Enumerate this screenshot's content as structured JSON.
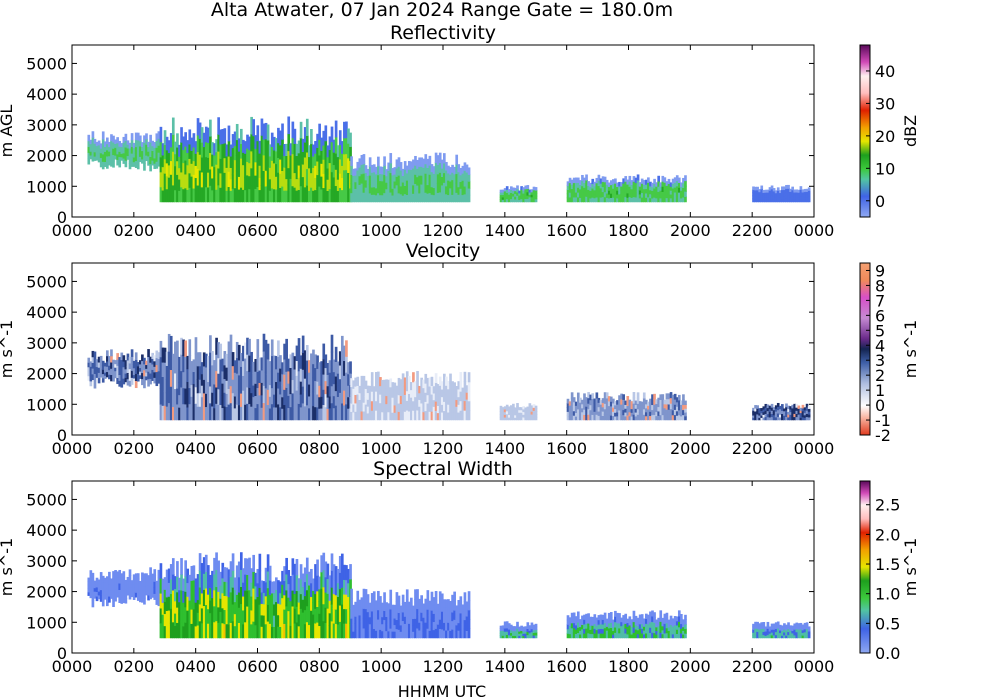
{
  "title": "Alta Atwater, 07 Jan 2024 Range Gate = 180.0m",
  "xaxis_label": "HHMM UTC",
  "chart_data": [
    {
      "type": "heatmap",
      "title": "Reflectivity",
      "ylabel": "m AGL",
      "ylim": [
        0,
        5600
      ],
      "yticks": [
        "0",
        "1000",
        "2000",
        "3000",
        "4000",
        "5000"
      ],
      "xticks": [
        "0000",
        "0200",
        "0400",
        "0600",
        "0800",
        "1000",
        "1200",
        "1400",
        "1600",
        "1800",
        "2000",
        "2200",
        "0000"
      ],
      "colorbar": {
        "label": "dBZ",
        "range": [
          -5,
          48
        ],
        "ticks": [
          "0",
          "10",
          "20",
          "30",
          "40"
        ]
      },
      "echo_segments": [
        {
          "start": "0030",
          "end": "0250",
          "base_m": 1500,
          "top_m": 2800,
          "peak_dbz": 8
        },
        {
          "start": "0250",
          "end": "0900",
          "base_m": 500,
          "top_m": 3300,
          "peak_dbz": 18
        },
        {
          "start": "0900",
          "end": "1250",
          "base_m": 500,
          "top_m": 2100,
          "peak_dbz": 8
        },
        {
          "start": "1350",
          "end": "1500",
          "base_m": 500,
          "top_m": 1050,
          "peak_dbz": 10
        },
        {
          "start": "1600",
          "end": "1950",
          "base_m": 500,
          "top_m": 1400,
          "peak_dbz": 10
        },
        {
          "start": "2200",
          "end": "2350",
          "base_m": 500,
          "top_m": 1050,
          "peak_dbz": 2
        }
      ]
    },
    {
      "type": "heatmap",
      "title": "Velocity",
      "ylabel": "m s^-1",
      "ylim": [
        0,
        5600
      ],
      "yticks": [
        "0",
        "1000",
        "2000",
        "3000",
        "4000",
        "5000"
      ],
      "xticks": [
        "0000",
        "0200",
        "0400",
        "0600",
        "0800",
        "1000",
        "1200",
        "1400",
        "1600",
        "1800",
        "2000",
        "2200",
        "0000"
      ],
      "colorbar": {
        "label": "m s^-1",
        "range": [
          -2,
          9.5
        ],
        "ticks": [
          "-2",
          "-1",
          "0",
          "1",
          "2",
          "3",
          "4",
          "5",
          "6",
          "7",
          "8",
          "9"
        ]
      },
      "echo_segments": [
        {
          "start": "0030",
          "end": "0250",
          "base_m": 1500,
          "top_m": 2800,
          "mean_vel": 2.5
        },
        {
          "start": "0250",
          "end": "0900",
          "base_m": 500,
          "top_m": 3300,
          "mean_vel": 2.5
        },
        {
          "start": "0900",
          "end": "1250",
          "base_m": 500,
          "top_m": 2100,
          "mean_vel": 0.7
        },
        {
          "start": "1350",
          "end": "1500",
          "base_m": 500,
          "top_m": 1050,
          "mean_vel": 0.8
        },
        {
          "start": "1600",
          "end": "1950",
          "base_m": 500,
          "top_m": 1400,
          "mean_vel": 2.0
        },
        {
          "start": "2200",
          "end": "2350",
          "base_m": 500,
          "top_m": 1050,
          "mean_vel": 3.0
        }
      ]
    },
    {
      "type": "heatmap",
      "title": "Spectral Width",
      "ylabel": "m s^-1",
      "ylim": [
        0,
        5600
      ],
      "yticks": [
        "0",
        "1000",
        "2000",
        "3000",
        "4000",
        "5000"
      ],
      "xticks": [
        "0000",
        "0200",
        "0400",
        "0600",
        "0800",
        "1000",
        "1200",
        "1400",
        "1600",
        "1800",
        "2000",
        "2200",
        "0000"
      ],
      "colorbar": {
        "label": "m s^-1",
        "range": [
          0,
          2.9
        ],
        "ticks": [
          "0.0",
          "0.5",
          "1.0",
          "1.5",
          "2.0",
          "2.5"
        ]
      },
      "echo_segments": [
        {
          "start": "0030",
          "end": "0250",
          "base_m": 1500,
          "top_m": 2800,
          "peak_width": 0.3
        },
        {
          "start": "0250",
          "end": "0900",
          "base_m": 500,
          "top_m": 3300,
          "peak_width": 1.8
        },
        {
          "start": "0900",
          "end": "1250",
          "base_m": 500,
          "top_m": 2100,
          "peak_width": 0.4
        },
        {
          "start": "1350",
          "end": "1500",
          "base_m": 500,
          "top_m": 1050,
          "peak_width": 0.9
        },
        {
          "start": "1600",
          "end": "1950",
          "base_m": 500,
          "top_m": 1400,
          "peak_width": 1.0
        },
        {
          "start": "2200",
          "end": "2350",
          "base_m": 500,
          "top_m": 1050,
          "peak_width": 0.8
        }
      ]
    }
  ]
}
